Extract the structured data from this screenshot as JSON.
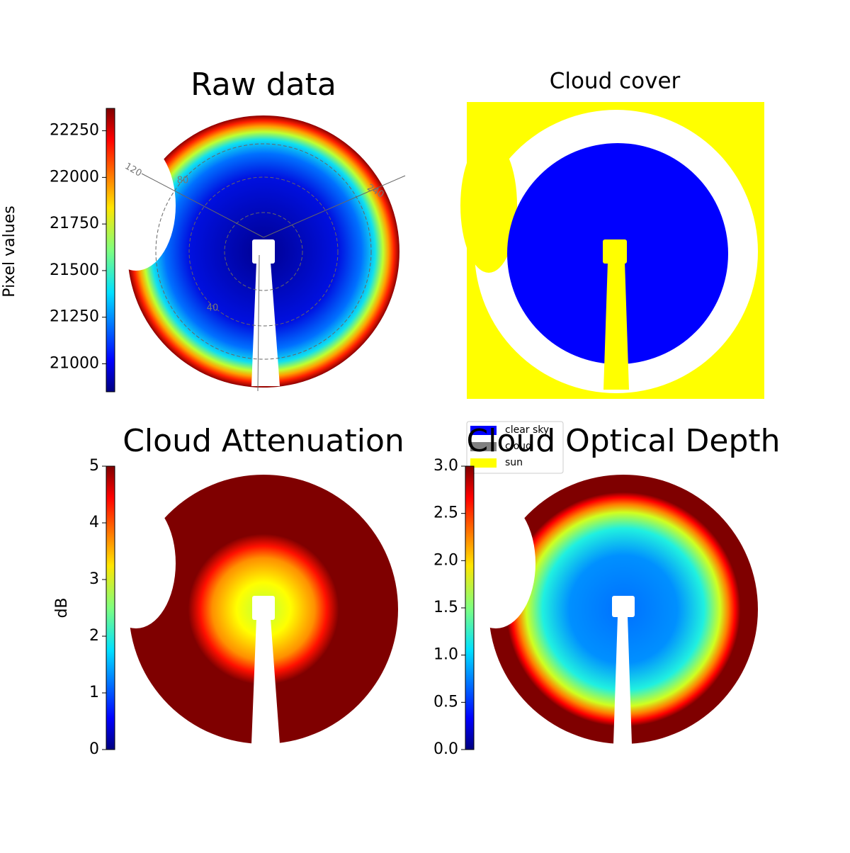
{
  "chart_data": [
    {
      "type": "image",
      "title": "Raw data",
      "colorbar_label": "Pixel values",
      "colormap": "jet",
      "ylim": [
        20850,
        22370
      ],
      "yticks": [
        21000,
        21250,
        21500,
        21750,
        22000,
        22250
      ],
      "polar_labels": [
        "120",
        "80",
        "240",
        "40"
      ]
    },
    {
      "type": "image",
      "title": "Cloud cover",
      "series": [
        {
          "name": "clear sky",
          "color": "#0000ff"
        },
        {
          "name": "cloud",
          "color": "#808080"
        },
        {
          "name": "sun",
          "color": "#ffff00"
        }
      ]
    },
    {
      "type": "image",
      "title": "Cloud Attenuation",
      "colorbar_label": "dB",
      "colormap": "jet",
      "ylim": [
        0,
        5
      ],
      "yticks": [
        0,
        1,
        2,
        3,
        4,
        5
      ]
    },
    {
      "type": "image",
      "title": "Cloud Optical Depth",
      "colormap": "jet",
      "ylim": [
        0,
        3
      ],
      "yticks": [
        {
          "value": 0,
          "label": "0.0"
        },
        0.5,
        {
          "value": 1,
          "label": "1.0"
        },
        1.5,
        {
          "value": 2,
          "label": "2.0"
        },
        2.5,
        {
          "value": 3,
          "label": "3.0"
        }
      ]
    }
  ]
}
